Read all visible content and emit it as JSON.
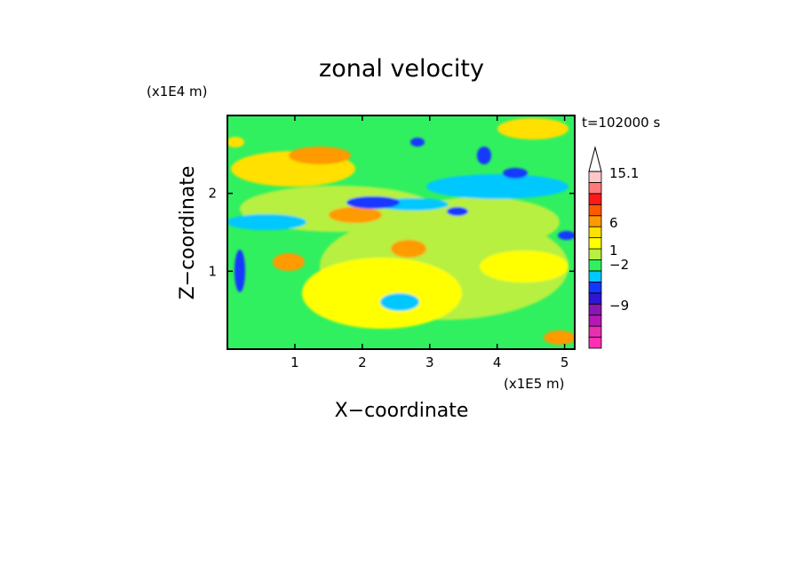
{
  "chart_data": {
    "type": "heatmap",
    "title": "zonal velocity",
    "xlabel": "X−coordinate",
    "ylabel": "Z−coordinate",
    "x_unit": "(x1E5 m)",
    "y_unit": "(x1E4 m)",
    "time_label": "t=102000 s",
    "xlim": [
      0,
      5.15
    ],
    "ylim": [
      0,
      3.0
    ],
    "x_ticks": [
      "1",
      "2",
      "3",
      "4",
      "5"
    ],
    "y_ticks": [
      "1",
      "2"
    ],
    "colorbar": {
      "labels": [
        "15.1",
        "6",
        "1",
        "−2",
        "−9"
      ],
      "colors": [
        "#ff2fb5",
        "#e82fb0",
        "#b518b5",
        "#8c16b5",
        "#2f16d2",
        "#1237ff",
        "#00c8ff",
        "#30f060",
        "#b7f03f",
        "#ffff00",
        "#ffe000",
        "#ff9a00",
        "#ff5a00",
        "#ff1a1a",
        "#ff7a7a",
        "#ffc7c7"
      ],
      "grid": false
    },
    "background_color": "#30f060"
  }
}
